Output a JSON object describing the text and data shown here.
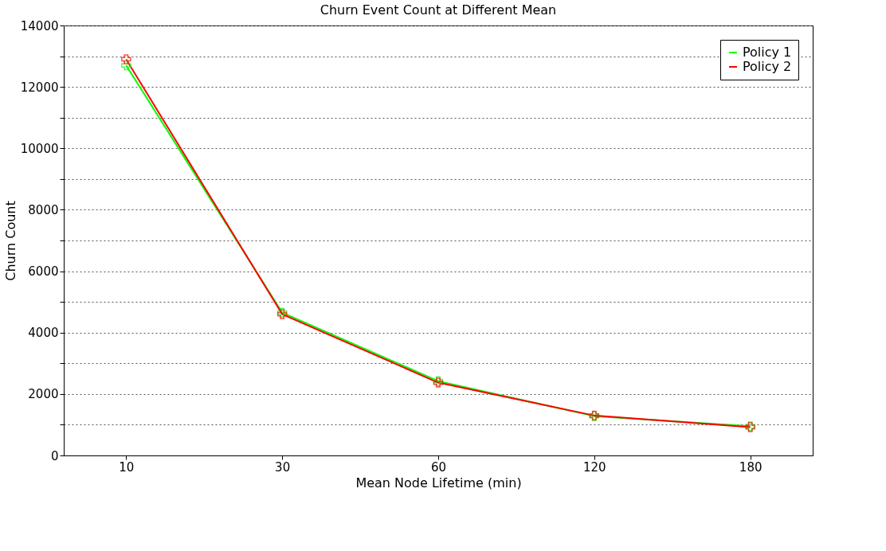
{
  "chart_data": {
    "type": "line",
    "title": "Churn Event Count at Different Mean",
    "xlabel": "Mean Node Lifetime (min)",
    "ylabel": "Churn Count",
    "categories": [
      "10",
      "30",
      "60",
      "120",
      "180"
    ],
    "series": [
      {
        "name": "Policy 1",
        "color": "#00ff00",
        "values": [
          12700,
          4650,
          2420,
          1280,
          950
        ]
      },
      {
        "name": "Policy 2",
        "color": "#ff0000",
        "values": [
          12900,
          4600,
          2370,
          1300,
          920
        ]
      }
    ],
    "ylim": [
      0,
      14000
    ],
    "yticks": [
      0,
      {
        "value": 1000,
        "label": null
      },
      2000,
      {
        "value": 3000,
        "label": null
      },
      4000,
      {
        "value": 5000,
        "label": null
      },
      6000,
      {
        "value": 7000,
        "label": null
      },
      8000,
      {
        "value": 9000,
        "label": null
      },
      10000,
      {
        "value": 11000,
        "label": null
      },
      12000,
      {
        "value": 13000,
        "label": null
      },
      14000
    ],
    "grid": "y",
    "legend": "top right",
    "marker": "cross",
    "line_style": "solid"
  }
}
